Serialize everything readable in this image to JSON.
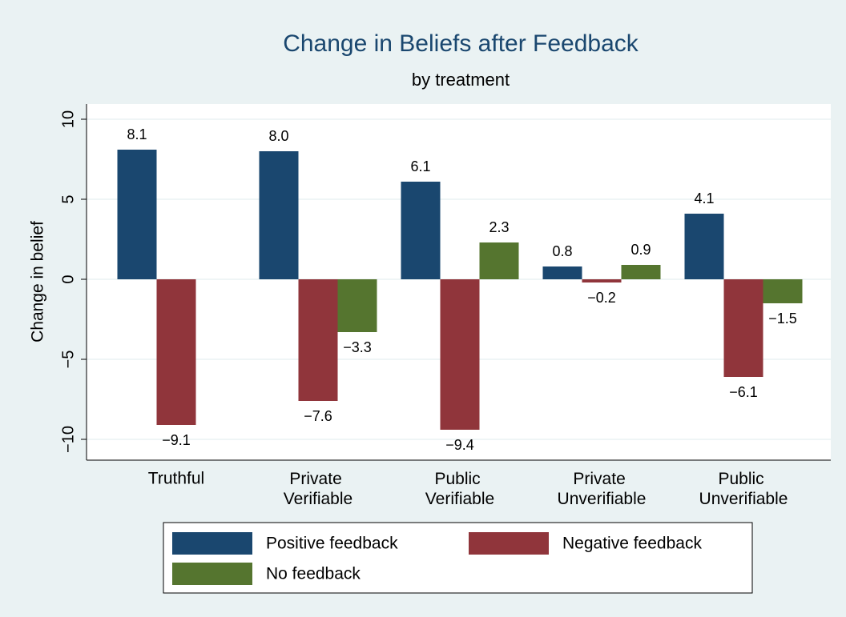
{
  "chart_data": {
    "type": "bar",
    "title": "Change in Beliefs after Feedback",
    "subtitle": "by treatment",
    "y_label": "Change in belief",
    "categories": [
      "Truthful",
      "Private Verifiable",
      "Public Verifiable",
      "Private Unverifiable",
      "Public Unverifiable"
    ],
    "series": [
      {
        "name": "Positive feedback",
        "color": "#1a476f",
        "values": [
          8.1,
          8.0,
          6.1,
          0.8,
          4.1
        ],
        "value_labels": [
          "8.1",
          "8.0",
          "6.1",
          "0.8",
          "4.1"
        ]
      },
      {
        "name": "Negative feedback",
        "color": "#90353b",
        "values": [
          -9.1,
          -7.6,
          -9.4,
          -0.2,
          -6.1
        ],
        "value_labels": [
          "−9.1",
          "−7.6",
          "−9.4",
          "−0.2",
          "−6.1"
        ]
      },
      {
        "name": "No feedback",
        "color": "#55752f",
        "values": [
          null,
          -3.3,
          2.3,
          0.9,
          -1.5
        ],
        "value_labels": [
          null,
          "−3.3",
          "2.3",
          "0.9",
          "−1.5"
        ]
      }
    ],
    "ylim": [
      -11.3,
      10.95
    ],
    "yticks": [
      {
        "value": -10,
        "label": "−10"
      },
      {
        "value": -5,
        "label": "−5"
      },
      0,
      5,
      10
    ],
    "grid": true
  }
}
